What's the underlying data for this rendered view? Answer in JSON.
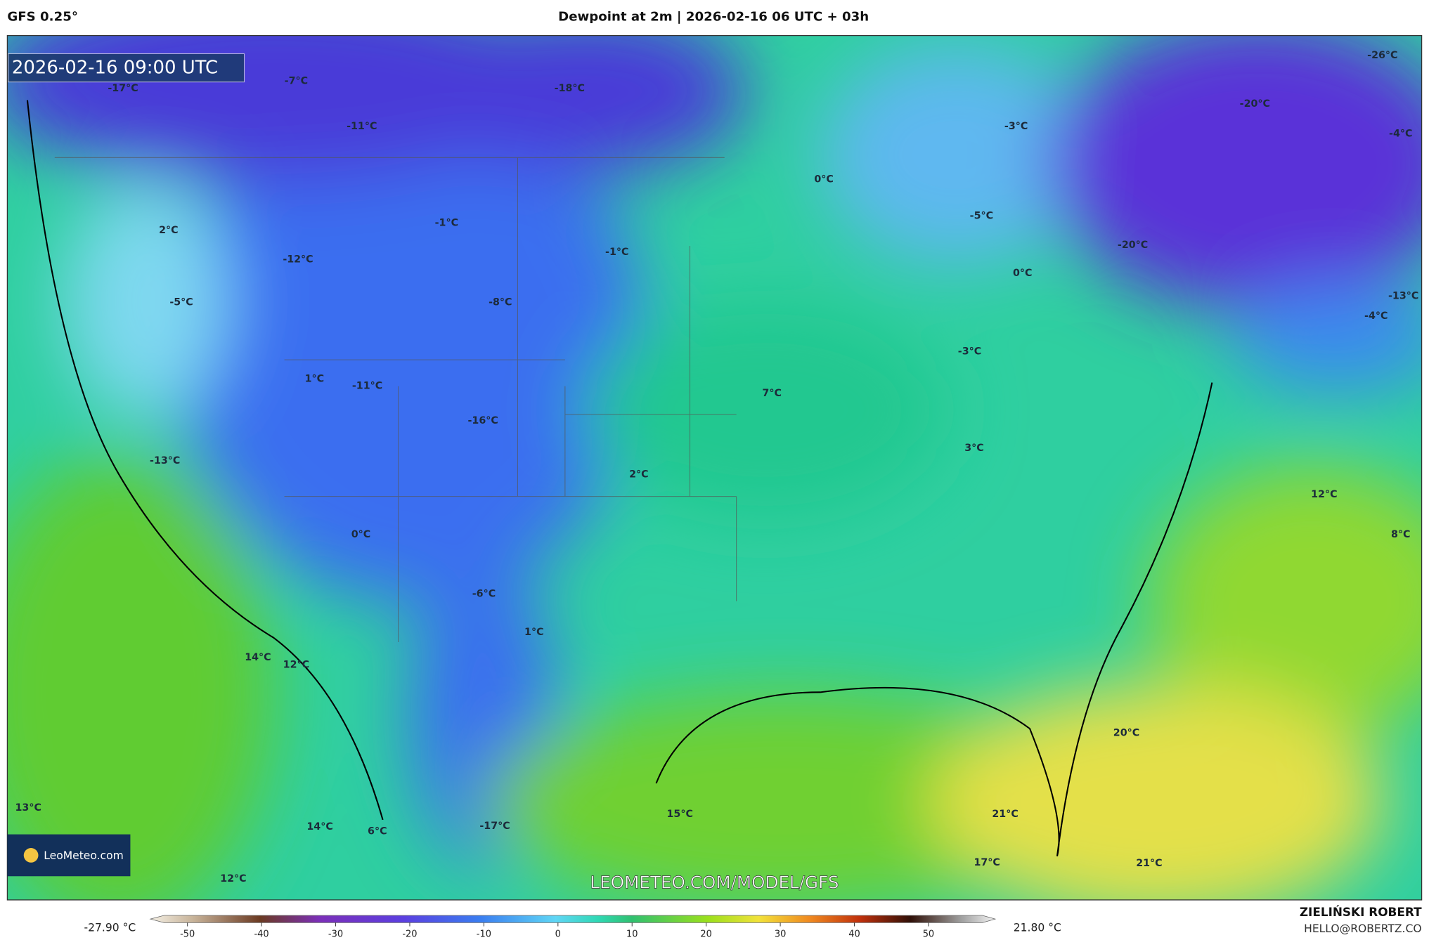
{
  "header": {
    "model": "GFS 0.25°",
    "title": "Dewpoint at 2m | 2026-02-16 06 UTC + 03h"
  },
  "map": {
    "timestamp": "2026-02-16 09:00 UTC",
    "labels": [
      "-17°C",
      "-7°C",
      "-18°C",
      "-11°C",
      "-3°C",
      "-20°C",
      "-26°C",
      "-4°C",
      "0°C",
      "-5°C",
      "2°C",
      "-1°C",
      "-1°C",
      "-12°C",
      "-20°C",
      "0°C",
      "-5°C",
      "-8°C",
      "-13°C",
      "-4°C",
      "-3°C",
      "1°C",
      "-11°C",
      "7°C",
      "-16°C",
      "-13°C",
      "3°C",
      "2°C",
      "12°C",
      "8°C",
      "0°C",
      "-6°C",
      "1°C",
      "14°C",
      "12°C",
      "20°C",
      "13°C",
      "15°C",
      "21°C",
      "14°C",
      "6°C",
      "-17°C",
      "17°C",
      "21°C",
      "12°C"
    ],
    "watermark": "LEOMETEO.COM/MODEL/GFS",
    "logo": "LeoMeteo.com"
  },
  "legend": {
    "min_label": "-27.90 °C",
    "max_label": "21.80 °C",
    "scale_range": [
      -55,
      59
    ],
    "ticks": [
      -50,
      -40,
      -30,
      -20,
      -10,
      0,
      10,
      20,
      30,
      40,
      50
    ]
  },
  "credits": {
    "author": "ZIELIŃSKI ROBERT",
    "contact": "HELLO@ROBERTZ.CO"
  }
}
